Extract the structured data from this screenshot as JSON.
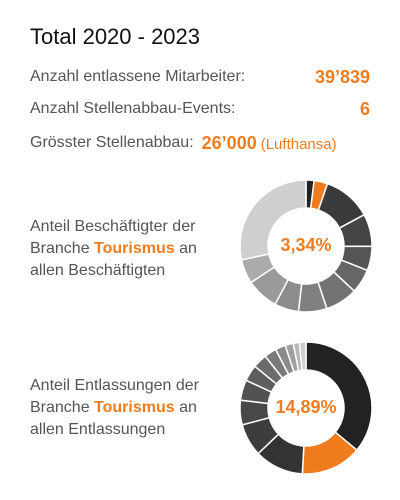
{
  "title": "Total 2020 - 2023",
  "stats": [
    {
      "label": "Anzahl entlassene Mitarbeiter:",
      "value": "39’839",
      "sub": ""
    },
    {
      "label": "Anzahl Stellenabbau-Events:",
      "value": "6",
      "sub": ""
    },
    {
      "label": "Grösster Stellenabbau:",
      "value": "26’000",
      "sub": "(Lufthansa)"
    }
  ],
  "colors": {
    "accent": "#f07c1e"
  },
  "chart_data": [
    {
      "type": "pie",
      "style": "donut",
      "center_label": "3,34%",
      "description": {
        "before": "Anteil Beschäftigter der Branche ",
        "highlight": "Tourismus",
        "after": " an allen Beschäftigten"
      },
      "highlight_share": 3.34,
      "values": [
        2.0,
        3.34,
        12.0,
        8.0,
        6.0,
        6.0,
        8.0,
        7.0,
        6.0,
        8.0,
        6.0,
        28.66
      ],
      "colors": [
        "#222222",
        "#f07c1e",
        "#3a3a3a",
        "#444444",
        "#555555",
        "#666666",
        "#737373",
        "#808080",
        "#8c8c8c",
        "#9a9a9a",
        "#ababab",
        "#cfcfcf"
      ]
    },
    {
      "type": "pie",
      "style": "donut",
      "center_label": "14,89%",
      "description": {
        "before": "Anteil Entlassungen der Branche ",
        "highlight": "Tourismus",
        "after": " an allen Entlassungen"
      },
      "highlight_share": 14.89,
      "values": [
        36.0,
        14.89,
        12.0,
        8.0,
        6.0,
        5.0,
        4.0,
        3.5,
        3.0,
        2.5,
        2.0,
        1.5,
        1.61
      ],
      "colors": [
        "#222222",
        "#f07c1e",
        "#333333",
        "#3d3d3d",
        "#484848",
        "#525252",
        "#5e5e5e",
        "#6b6b6b",
        "#7a7a7a",
        "#8a8a8a",
        "#a0a0a0",
        "#b8b8b8",
        "#cfcfcf"
      ]
    }
  ]
}
